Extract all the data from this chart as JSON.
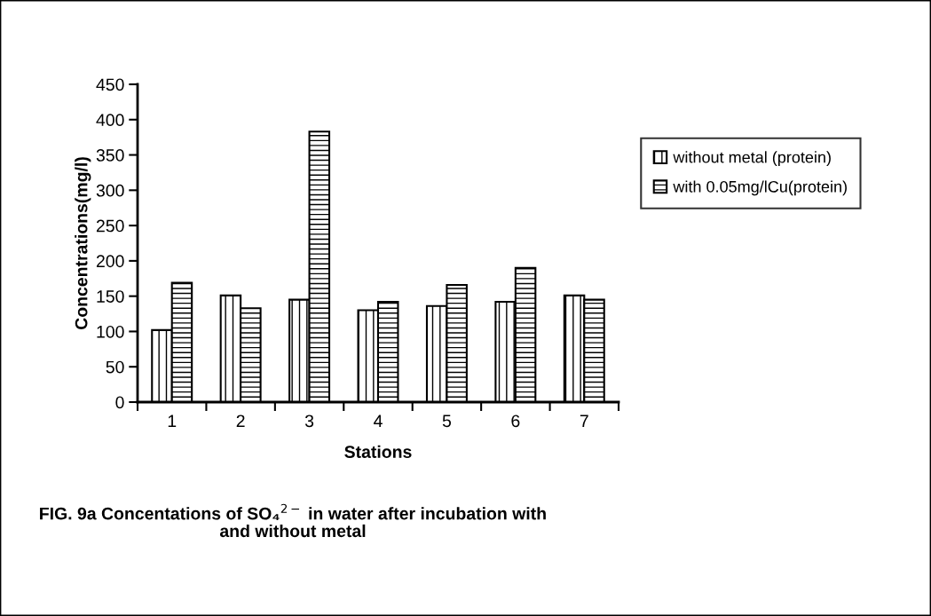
{
  "chart_data": {
    "type": "bar",
    "title": "FIG. 9a Concentations of SO₄$^{2−}$ in water after incubation with\nand without metal",
    "xlabel": "Stations",
    "ylabel": "Concentrations(mg/l)",
    "categories": [
      "1",
      "2",
      "3",
      "4",
      "5",
      "6",
      "7"
    ],
    "series": [
      {
        "name": "without metal (protein)",
        "color": "#000000",
        "values": [
          102,
          151,
          145,
          130,
          136,
          142,
          151
        ]
      },
      {
        "name": "with 0.05mg/lCu(protein)",
        "color": "#000000",
        "values": [
          169,
          133,
          383,
          142,
          166,
          190,
          145
        ]
      }
    ],
    "ylim": [
      0,
      450
    ],
    "yticks": [
      0,
      50,
      100,
      150,
      200,
      250,
      300,
      350,
      400,
      450
    ],
    "grid": false,
    "legend": "right"
  }
}
